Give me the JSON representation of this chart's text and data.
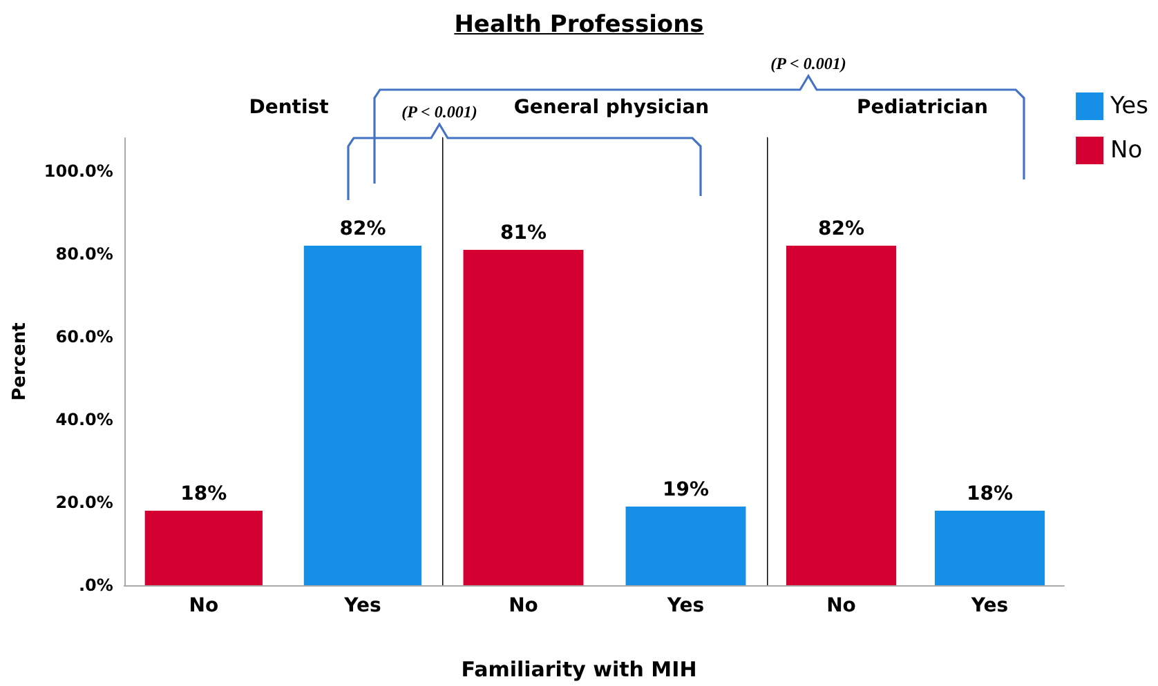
{
  "chart_data": [
    {
      "type": "bar",
      "subtitle": "Dentist",
      "ylabel": "Percent",
      "categories": [
        "No",
        "Yes"
      ],
      "stacked": true,
      "ylim": [
        0,
        108
      ],
      "yticks": [
        {
          "value": 0,
          "label": ".0%"
        },
        {
          "value": 20,
          "label": "20.0%"
        },
        {
          "value": 40,
          "label": "40.0%"
        },
        {
          "value": 60,
          "label": "60.0%"
        },
        {
          "value": 80,
          "label": "80.0%"
        },
        {
          "value": 100,
          "label": "100.0%"
        }
      ],
      "annotations": [
        "(P < 0.001)"
      ],
      "series": [
        {
          "color": "#1590e6",
          "values": [
            null,
            82
          ],
          "value_labels": [
            null,
            "82%"
          ]
        },
        {
          "color": "#d50032",
          "values": [
            18,
            null
          ],
          "value_labels": [
            "18%",
            null
          ]
        }
      ]
    },
    {
      "type": "bar",
      "title": "Health Professions",
      "subtitle": "General physician",
      "xlabel": "Familiarity with MIH",
      "categories": [
        "No",
        "Yes"
      ],
      "stacked": true,
      "ylim": [
        0,
        108
      ],
      "tick_labels": "x",
      "annotations": [
        "(P < 0.001)"
      ],
      "series": [
        {
          "color": "#1590e6",
          "values": [
            null,
            19
          ],
          "value_labels": [
            null,
            "19%"
          ]
        },
        {
          "color": "#d50032",
          "values": [
            81,
            null
          ],
          "value_labels": [
            "81%",
            null
          ]
        }
      ]
    },
    {
      "type": "bar",
      "subtitle": "Pediatrician",
      "categories": [
        "No",
        "Yes"
      ],
      "stacked": true,
      "ylim": [
        0,
        108
      ],
      "tick_labels": "x",
      "legend": "top right",
      "series": [
        {
          "name": "Yes",
          "color": "#1590e6",
          "values": [
            null,
            18
          ],
          "value_labels": [
            null,
            "18%"
          ]
        },
        {
          "name": "No",
          "color": "#d50032",
          "values": [
            82,
            null
          ],
          "value_labels": [
            "82%",
            null
          ]
        }
      ]
    }
  ]
}
